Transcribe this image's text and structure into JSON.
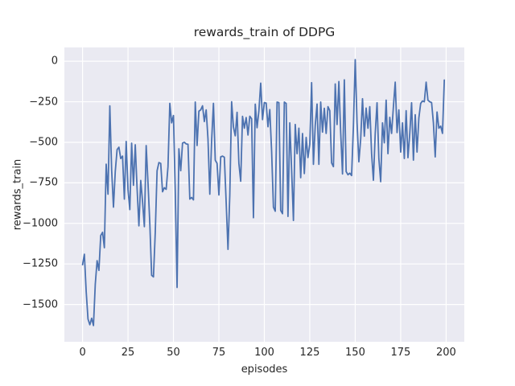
{
  "chart_data": {
    "type": "line",
    "title": "rewards_train of DDPG",
    "xlabel": "episodes",
    "ylabel": "rewards_train",
    "legend": null,
    "grid": true,
    "plot_bg_color": "#eaeaf2",
    "grid_color": "#ffffff",
    "line_color": "#4c72b0",
    "text_color": "#262626",
    "xlim": [
      -10,
      210
    ],
    "ylim": [
      -1730,
      85
    ],
    "xticks": [
      0,
      25,
      50,
      75,
      100,
      125,
      150,
      175,
      200
    ],
    "xtick_labels": [
      "0",
      "25",
      "50",
      "75",
      "100",
      "125",
      "150",
      "175",
      "200"
    ],
    "yticks": [
      0,
      -250,
      -500,
      -750,
      -1000,
      -1250,
      -1500
    ],
    "ytick_labels": [
      "0",
      "−250",
      "−500",
      "−750",
      "−1000",
      "−1250",
      "−1500"
    ],
    "x_start": 0,
    "x_step": 1,
    "values": [
      -1255,
      -1190,
      -1420,
      -1590,
      -1625,
      -1585,
      -1630,
      -1375,
      -1230,
      -1290,
      -1075,
      -1055,
      -1150,
      -635,
      -820,
      -275,
      -670,
      -900,
      -680,
      -545,
      -530,
      -600,
      -585,
      -850,
      -495,
      -790,
      -915,
      -505,
      -765,
      -515,
      -785,
      -1015,
      -735,
      -865,
      -1020,
      -520,
      -750,
      -1000,
      -1320,
      -1330,
      -1055,
      -675,
      -625,
      -630,
      -805,
      -780,
      -790,
      -650,
      -260,
      -380,
      -335,
      -800,
      -1395,
      -540,
      -675,
      -505,
      -500,
      -510,
      -512,
      -850,
      -840,
      -855,
      -252,
      -520,
      -308,
      -300,
      -275,
      -372,
      -300,
      -480,
      -820,
      -490,
      -260,
      -610,
      -630,
      -825,
      -590,
      -585,
      -592,
      -870,
      -1160,
      -825,
      -250,
      -405,
      -460,
      -315,
      -630,
      -740,
      -340,
      -413,
      -347,
      -455,
      -339,
      -355,
      -965,
      -265,
      -410,
      -306,
      -135,
      -360,
      -255,
      -258,
      -404,
      -298,
      -555,
      -900,
      -925,
      -252,
      -255,
      -920,
      -940,
      -252,
      -260,
      -957,
      -380,
      -669,
      -982,
      -390,
      -570,
      -413,
      -718,
      -446,
      -693,
      -470,
      -594,
      -511,
      -132,
      -636,
      -396,
      -264,
      -636,
      -252,
      -437,
      -290,
      -445,
      -280,
      -305,
      -627,
      -650,
      -140,
      -390,
      -125,
      -440,
      -695,
      -115,
      -680,
      -700,
      -690,
      -705,
      -400,
      10,
      -380,
      -620,
      -480,
      -231,
      -462,
      -289,
      -413,
      -280,
      -570,
      -734,
      -445,
      -256,
      -600,
      -743,
      -380,
      -503,
      -240,
      -570,
      -346,
      -445,
      -280,
      -129,
      -440,
      -300,
      -560,
      -380,
      -600,
      -305,
      -595,
      -445,
      -256,
      -610,
      -330,
      -560,
      -350,
      -260,
      -245,
      -250,
      -129,
      -240,
      -250,
      -255,
      -380,
      -590,
      -313,
      -413,
      -400,
      -445,
      -116
    ]
  }
}
